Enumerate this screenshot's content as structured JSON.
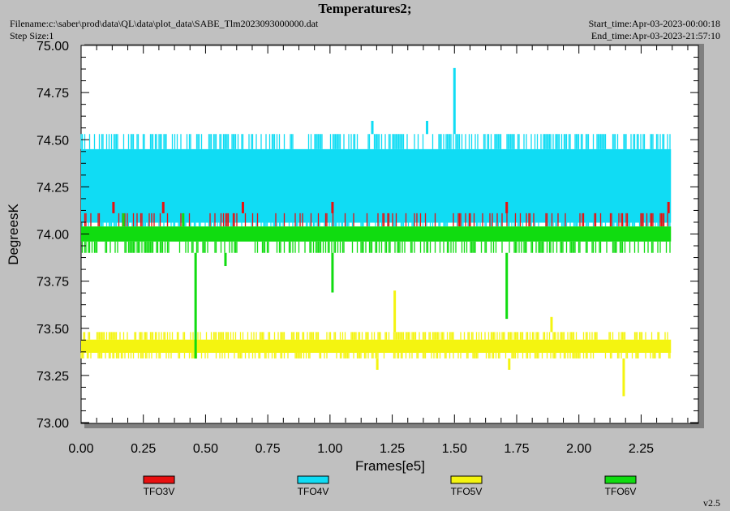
{
  "header": {
    "title": "Temperatures2;",
    "filename": "Filename:c:\\saber\\prod\\data\\QL\\data\\plot_data\\SABE_Tlm2023093000000.dat",
    "step_size": "Step Size:1",
    "start_time": "Start_time:Apr-03-2023-00:00:18",
    "end_time": "End_time:Apr-03-2023-21:57:10"
  },
  "footer": {
    "version": "v2.5"
  },
  "colors": {
    "background": "#c0c0c0",
    "plot_area": "#ffffff"
  },
  "chart_data": {
    "type": "line",
    "title": "Temperatures2;",
    "xlabel": "Frames[e5]",
    "ylabel": "DegreesK",
    "xlim": [
      0,
      2.48
    ],
    "ylim": [
      73.0,
      75.0
    ],
    "x_ticks": [
      "0.00",
      "0.25",
      "0.50",
      "0.75",
      "1.00",
      "1.25",
      "1.50",
      "1.75",
      "2.00",
      "2.25"
    ],
    "y_ticks": [
      "73.00",
      "73.25",
      "73.50",
      "73.75",
      "74.00",
      "74.25",
      "74.50",
      "74.75",
      "75.00"
    ],
    "grid": false,
    "legend_position": "bottom",
    "series": [
      {
        "name": "TFO3V",
        "color": "#e81010",
        "x_range": [
          0.0,
          2.37
        ],
        "low": 74.04,
        "high": 74.11,
        "spikes": [
          [
            0.13,
            74.17
          ],
          [
            0.33,
            74.17
          ],
          [
            0.65,
            74.17
          ],
          [
            1.01,
            74.17
          ],
          [
            1.71,
            74.17
          ],
          [
            2.36,
            74.17
          ]
        ],
        "dips": []
      },
      {
        "name": "TFO4V",
        "color": "#10dcf4",
        "x_range": [
          0.0,
          2.37
        ],
        "low": 74.04,
        "high": 74.53,
        "spikes": [
          [
            1.17,
            74.6
          ],
          [
            1.39,
            74.6
          ],
          [
            1.5,
            74.88
          ]
        ],
        "dips": []
      },
      {
        "name": "TFO5V",
        "color": "#f4f410",
        "x_range": [
          0.0,
          2.37
        ],
        "low": 73.34,
        "high": 73.48,
        "spikes": [
          [
            1.26,
            73.7
          ],
          [
            1.89,
            73.56
          ]
        ],
        "dips": [
          [
            0.46,
            73.34
          ],
          [
            1.19,
            73.28
          ],
          [
            1.72,
            73.28
          ],
          [
            2.18,
            73.14
          ]
        ]
      },
      {
        "name": "TFO6V",
        "color": "#10dc10",
        "x_range": [
          0.0,
          2.37
        ],
        "low": 73.9,
        "high": 74.04,
        "spikes": [
          [
            0.17,
            74.11
          ],
          [
            0.41,
            74.11
          ]
        ],
        "dips": [
          [
            0.46,
            73.34
          ],
          [
            0.58,
            73.83
          ],
          [
            1.01,
            73.69
          ],
          [
            1.71,
            73.55
          ]
        ]
      }
    ]
  }
}
